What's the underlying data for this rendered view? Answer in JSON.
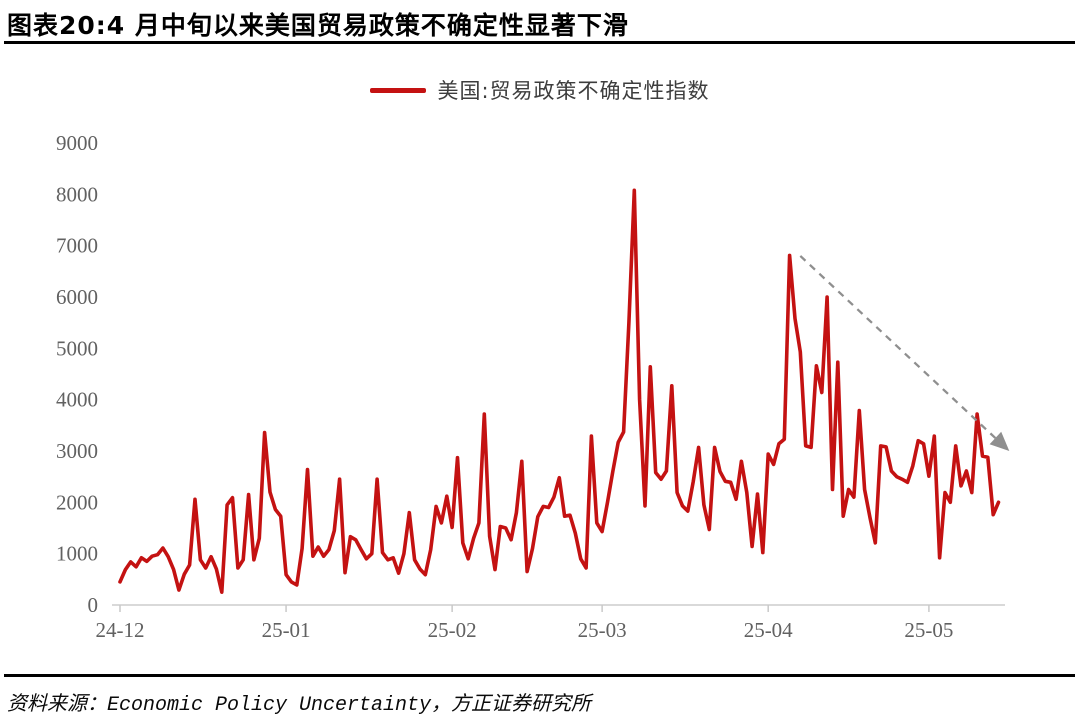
{
  "header": {
    "title": "图表20:4 月中旬以来美国贸易政策不确定性显著下滑"
  },
  "footer": {
    "source": "资料来源：Economic Policy Uncertainty，方正证券研究所"
  },
  "colors": {
    "series_red": "#c41212",
    "axis_line": "#d9d9d9",
    "tick_mark": "#c9c9c9",
    "tick_label": "#616161",
    "arrow_gray": "#8f8f8f",
    "divider_black": "#000000"
  },
  "chart_data": {
    "type": "line",
    "title": "图表20:4 月中旬以来美国贸易政策不确定性显著下滑",
    "xlabel": "",
    "ylabel": "",
    "start_date": "2024-12-01",
    "frequency": "daily",
    "ylim": [
      0,
      9000
    ],
    "grid": "off",
    "legend_position": "top-center",
    "y_ticks": [
      0,
      1000,
      2000,
      3000,
      4000,
      5000,
      6000,
      7000,
      8000,
      9000
    ],
    "x_ticks": [
      {
        "label": "24-12",
        "day_index": 0
      },
      {
        "label": "25-01",
        "day_index": 31
      },
      {
        "label": "25-02",
        "day_index": 62
      },
      {
        "label": "25-03",
        "day_index": 90
      },
      {
        "label": "25-04",
        "day_index": 121
      },
      {
        "label": "25-05",
        "day_index": 151
      }
    ],
    "series": [
      {
        "name": "美国:贸易政策不确定性指数",
        "color": "#c41212",
        "values": [
          450,
          690,
          840,
          745,
          920,
          850,
          950,
          980,
          1110,
          940,
          690,
          290,
          600,
          780,
          2060,
          880,
          720,
          940,
          700,
          250,
          1950,
          2090,
          720,
          880,
          2150,
          880,
          1300,
          3360,
          2200,
          1860,
          1730,
          590,
          450,
          390,
          1100,
          2640,
          950,
          1130,
          950,
          1080,
          1450,
          2450,
          630,
          1330,
          1270,
          1080,
          900,
          1000,
          2450,
          1020,
          880,
          920,
          620,
          1000,
          1800,
          880,
          700,
          590,
          1080,
          1920,
          1600,
          2120,
          1510,
          2870,
          1210,
          900,
          1300,
          1600,
          3720,
          1340,
          690,
          1530,
          1500,
          1270,
          1800,
          2800,
          650,
          1100,
          1720,
          1920,
          1900,
          2100,
          2480,
          1730,
          1750,
          1400,
          900,
          720,
          3290,
          1600,
          1430,
          2000,
          2600,
          3170,
          3370,
          5500,
          8080,
          4000,
          1930,
          4640,
          2580,
          2450,
          2610,
          4270,
          2190,
          1930,
          1830,
          2400,
          3070,
          1950,
          1470,
          3070,
          2600,
          2410,
          2390,
          2060,
          2800,
          2190,
          1140,
          2160,
          1020,
          2940,
          2740,
          3140,
          3230,
          6810,
          5580,
          4930,
          3100,
          3070,
          4660,
          4140,
          6000,
          2250,
          4730,
          1730,
          2250,
          2100,
          3790,
          2250,
          1700,
          1210,
          3100,
          3080,
          2610,
          2500,
          2450,
          2390,
          2710,
          3200,
          3140,
          2510,
          3290,
          920,
          2190,
          2000,
          3100,
          2320,
          2610,
          2190,
          3720,
          2900,
          2880,
          1760,
          2000
        ]
      }
    ],
    "annotations": [
      {
        "type": "dashed-arrow",
        "meaning": "decline since mid-April",
        "color": "#8f8f8f",
        "from": {
          "day_index": 127,
          "value": 6800
        },
        "to": {
          "day_index": 166,
          "value": 3000
        }
      }
    ]
  }
}
